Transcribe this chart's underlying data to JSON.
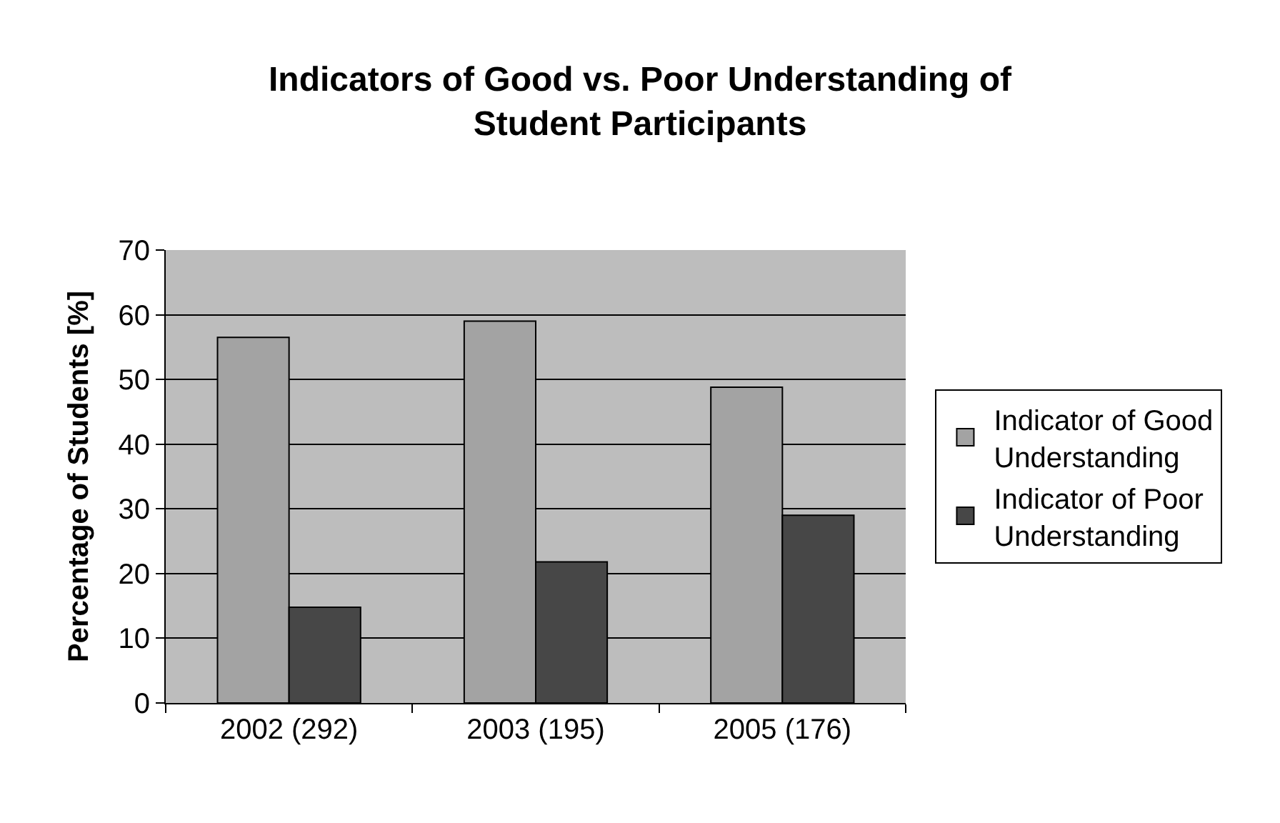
{
  "chart_data": {
    "type": "bar",
    "title": "Indicators of Good vs. Poor Understanding of Student Participants",
    "ylabel": "Percentage of Students [%]",
    "categories": [
      "2002 (292)",
      "2003 (195)",
      "2005 (176)"
    ],
    "series": [
      {
        "name": "Indicator of Good Understanding",
        "color": "#a3a3a3",
        "values": [
          56.5,
          59,
          48.8
        ]
      },
      {
        "name": "Indicator of Poor Understanding",
        "color": "#474747",
        "values": [
          14.8,
          21.8,
          29
        ]
      }
    ],
    "ylim": [
      0,
      70
    ],
    "yticks": [
      0,
      10,
      20,
      30,
      40,
      50,
      60,
      70
    ],
    "grid": "y",
    "legend": "right"
  }
}
